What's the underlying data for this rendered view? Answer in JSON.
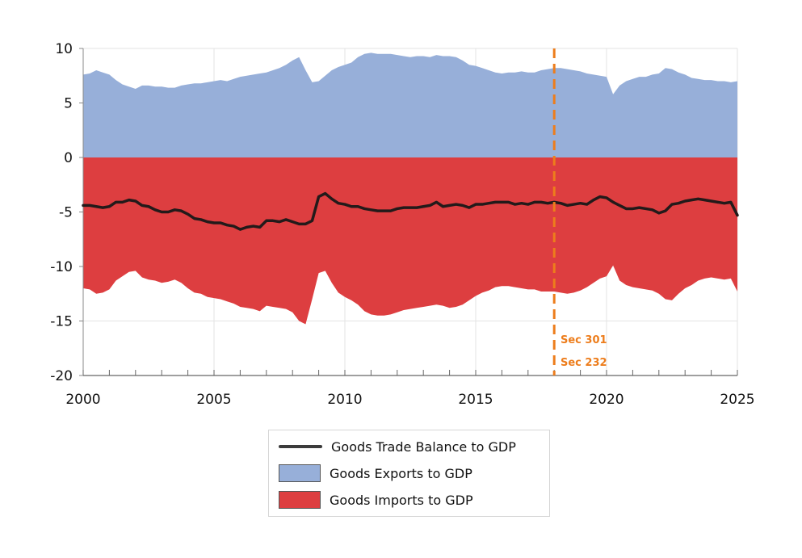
{
  "chart_data": {
    "type": "area",
    "title": "",
    "xlabel": "",
    "ylabel": "",
    "xlim": [
      2000,
      2025
    ],
    "ylim": [
      -20,
      10
    ],
    "x_ticks": [
      2000,
      2005,
      2010,
      2015,
      2020,
      2025
    ],
    "x_tick_labels": [
      "2000",
      "2005",
      "2010",
      "2015",
      "2020",
      "2025"
    ],
    "y_ticks": [
      10,
      5,
      0,
      -5,
      -10,
      -15,
      -20
    ],
    "y_tick_labels": [
      "10",
      "5",
      "0",
      "-5",
      "-10",
      "-15",
      "-20"
    ],
    "grid": true,
    "legend_position": "bottom-center",
    "x": [
      2000.0,
      2000.25,
      2000.5,
      2000.75,
      2001.0,
      2001.25,
      2001.5,
      2001.75,
      2002.0,
      2002.25,
      2002.5,
      2002.75,
      2003.0,
      2003.25,
      2003.5,
      2003.75,
      2004.0,
      2004.25,
      2004.5,
      2004.75,
      2005.0,
      2005.25,
      2005.5,
      2005.75,
      2006.0,
      2006.25,
      2006.5,
      2006.75,
      2007.0,
      2007.25,
      2007.5,
      2007.75,
      2008.0,
      2008.25,
      2008.5,
      2008.75,
      2009.0,
      2009.25,
      2009.5,
      2009.75,
      2010.0,
      2010.25,
      2010.5,
      2010.75,
      2011.0,
      2011.25,
      2011.5,
      2011.75,
      2012.0,
      2012.25,
      2012.5,
      2012.75,
      2013.0,
      2013.25,
      2013.5,
      2013.75,
      2014.0,
      2014.25,
      2014.5,
      2014.75,
      2015.0,
      2015.25,
      2015.5,
      2015.75,
      2016.0,
      2016.25,
      2016.5,
      2016.75,
      2017.0,
      2017.25,
      2017.5,
      2017.75,
      2018.0,
      2018.25,
      2018.5,
      2018.75,
      2019.0,
      2019.25,
      2019.5,
      2019.75,
      2020.0,
      2020.25,
      2020.5,
      2020.75,
      2021.0,
      2021.25,
      2021.5,
      2021.75,
      2022.0,
      2022.25,
      2022.5,
      2022.75,
      2023.0,
      2023.25,
      2023.5,
      2023.75,
      2024.0,
      2024.25,
      2024.5,
      2024.75,
      2025.0
    ],
    "series": [
      {
        "name": "Goods Exports to GDP",
        "color": "#97AFD9",
        "style": "area",
        "values": [
          7.6,
          7.7,
          8.0,
          7.8,
          7.6,
          7.1,
          6.7,
          6.5,
          6.3,
          6.6,
          6.6,
          6.5,
          6.5,
          6.4,
          6.4,
          6.6,
          6.7,
          6.8,
          6.8,
          6.9,
          7.0,
          7.1,
          7.0,
          7.2,
          7.4,
          7.5,
          7.6,
          7.7,
          7.8,
          8.0,
          8.2,
          8.5,
          8.9,
          9.2,
          8.0,
          6.9,
          7.0,
          7.5,
          8.0,
          8.3,
          8.5,
          8.7,
          9.2,
          9.5,
          9.6,
          9.5,
          9.5,
          9.5,
          9.4,
          9.3,
          9.2,
          9.3,
          9.3,
          9.2,
          9.4,
          9.3,
          9.3,
          9.2,
          8.9,
          8.5,
          8.4,
          8.2,
          8.0,
          7.8,
          7.7,
          7.8,
          7.8,
          7.9,
          7.8,
          7.8,
          8.0,
          8.1,
          8.2,
          8.2,
          8.1,
          8.0,
          7.9,
          7.7,
          7.6,
          7.5,
          7.4,
          5.8,
          6.6,
          7.0,
          7.2,
          7.4,
          7.4,
          7.6,
          7.7,
          8.2,
          8.1,
          7.8,
          7.6,
          7.3,
          7.2,
          7.1,
          7.1,
          7.0,
          7.0,
          6.9,
          7.0
        ]
      },
      {
        "name": "Goods Imports to GDP",
        "color": "#DD3E40",
        "style": "area",
        "values": [
          -12.0,
          -12.1,
          -12.5,
          -12.4,
          -12.1,
          -11.3,
          -10.9,
          -10.5,
          -10.4,
          -11.0,
          -11.2,
          -11.3,
          -11.5,
          -11.4,
          -11.2,
          -11.5,
          -12.0,
          -12.4,
          -12.5,
          -12.8,
          -12.9,
          -13.0,
          -13.2,
          -13.4,
          -13.7,
          -13.8,
          -13.9,
          -14.1,
          -13.6,
          -13.7,
          -13.8,
          -13.9,
          -14.2,
          -15.0,
          -15.3,
          -13.0,
          -10.6,
          -10.4,
          -11.5,
          -12.4,
          -12.8,
          -13.1,
          -13.5,
          -14.1,
          -14.4,
          -14.5,
          -14.5,
          -14.4,
          -14.2,
          -14.0,
          -13.9,
          -13.8,
          -13.7,
          -13.6,
          -13.5,
          -13.6,
          -13.8,
          -13.7,
          -13.5,
          -13.1,
          -12.7,
          -12.4,
          -12.2,
          -11.9,
          -11.8,
          -11.8,
          -11.9,
          -12.0,
          -12.1,
          -12.1,
          -12.3,
          -12.3,
          -12.3,
          -12.4,
          -12.5,
          -12.4,
          -12.2,
          -11.9,
          -11.5,
          -11.1,
          -10.9,
          -9.9,
          -11.3,
          -11.7,
          -11.9,
          -12.0,
          -12.1,
          -12.2,
          -12.5,
          -13.0,
          -13.1,
          -12.5,
          -12.0,
          -11.7,
          -11.3,
          -11.1,
          -11.0,
          -11.1,
          -11.2,
          -11.1,
          -12.3
        ]
      },
      {
        "name": "Goods Trade Balance to GDP",
        "color": "#231A1A",
        "style": "line",
        "values": [
          -4.4,
          -4.4,
          -4.5,
          -4.6,
          -4.5,
          -4.1,
          -4.1,
          -3.9,
          -4.0,
          -4.4,
          -4.5,
          -4.8,
          -5.0,
          -5.0,
          -4.8,
          -4.9,
          -5.2,
          -5.6,
          -5.7,
          -5.9,
          -6.0,
          -6.0,
          -6.2,
          -6.3,
          -6.6,
          -6.4,
          -6.3,
          -6.4,
          -5.8,
          -5.8,
          -5.9,
          -5.7,
          -5.9,
          -6.1,
          -6.1,
          -5.8,
          -3.6,
          -3.3,
          -3.8,
          -4.2,
          -4.3,
          -4.5,
          -4.5,
          -4.7,
          -4.8,
          -4.9,
          -4.9,
          -4.9,
          -4.7,
          -4.6,
          -4.6,
          -4.6,
          -4.5,
          -4.4,
          -4.1,
          -4.5,
          -4.4,
          -4.3,
          -4.4,
          -4.6,
          -4.3,
          -4.3,
          -4.2,
          -4.1,
          -4.1,
          -4.1,
          -4.3,
          -4.2,
          -4.3,
          -4.1,
          -4.1,
          -4.2,
          -4.1,
          -4.2,
          -4.4,
          -4.3,
          -4.2,
          -4.3,
          -3.9,
          -3.6,
          -3.7,
          -4.1,
          -4.4,
          -4.7,
          -4.7,
          -4.6,
          -4.7,
          -4.8,
          -5.1,
          -4.9,
          -4.3,
          -4.2,
          -4.0,
          -3.9,
          -3.8,
          -3.9,
          -4.0,
          -4.1,
          -4.2,
          -4.1,
          -5.3
        ]
      }
    ],
    "annotation": {
      "x": 2018.0,
      "color": "#ED7D1C",
      "style": "dashed vertical line",
      "labels": [
        "Sec 301",
        "Sec 232"
      ]
    }
  }
}
